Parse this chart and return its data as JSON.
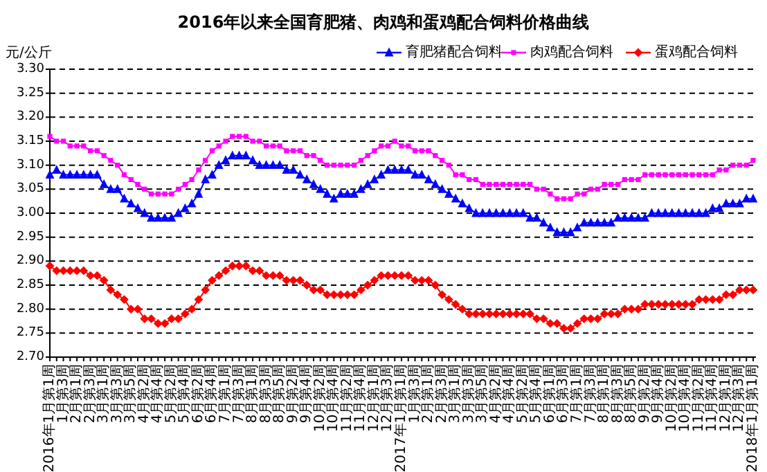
{
  "chart_data": {
    "type": "line",
    "title": "2016年以来全国育肥猪、肉鸡和蛋鸡配合饲料价格曲线",
    "ylabel": "元/公斤",
    "categories": [
      "2016年1月第1周",
      null,
      "1月第3周",
      null,
      "2月第1周",
      null,
      "2月第3周",
      null,
      "3月第1周",
      null,
      "3月第3周",
      null,
      "3月第5周",
      null,
      "4月第2周",
      null,
      "4月第4周",
      null,
      "5月第2周",
      null,
      "5月第4周",
      null,
      "6月第2周",
      null,
      "6月第4周",
      null,
      "7月第1周",
      null,
      "7月第3周",
      null,
      "8月第1周",
      null,
      "8月第3周",
      null,
      "8月第5周",
      null,
      "9月第2周",
      null,
      "9月第4周",
      null,
      "10月第2周",
      null,
      "10月第4周",
      null,
      "11月第2周",
      null,
      "11月第4周",
      null,
      "12月第1周",
      null,
      "12月第3周",
      null,
      "2017年1月第1周",
      null,
      "1月第3周",
      null,
      "2月第1周",
      null,
      "2月第3周",
      null,
      "3月第1周",
      null,
      "3月第3周",
      null,
      "3月第5周",
      null,
      "4月第2周",
      null,
      "4月第4周",
      null,
      "5月第2周",
      null,
      "5月第4周",
      null,
      "6月第1周",
      null,
      "6月第3周",
      null,
      "7月第1周",
      null,
      "7月第3周",
      null,
      "8月第1周",
      null,
      "8月第3周",
      null,
      "8月第5周",
      null,
      "9月第2周",
      null,
      "9月第4周",
      null,
      "10月第2周",
      null,
      "10月第4周",
      null,
      "11月第2周",
      null,
      "11月第4周",
      null,
      "12月第1周",
      null,
      "12月第3周",
      null,
      "2018年1月第1周"
    ],
    "series": [
      {
        "name": "育肥猪配合饲料",
        "color": "#0000ff",
        "marker": "triangle",
        "values": [
          3.08,
          3.09,
          3.08,
          3.08,
          3.08,
          3.08,
          3.08,
          3.08,
          3.06,
          3.05,
          3.05,
          3.03,
          3.02,
          3.01,
          3.0,
          2.99,
          2.99,
          2.99,
          2.99,
          3.0,
          3.01,
          3.02,
          3.04,
          3.07,
          3.08,
          3.1,
          3.11,
          3.12,
          3.12,
          3.12,
          3.11,
          3.1,
          3.1,
          3.1,
          3.1,
          3.09,
          3.09,
          3.08,
          3.07,
          3.06,
          3.05,
          3.04,
          3.03,
          3.04,
          3.04,
          3.04,
          3.05,
          3.06,
          3.07,
          3.08,
          3.09,
          3.09,
          3.09,
          3.09,
          3.08,
          3.08,
          3.07,
          3.06,
          3.05,
          3.04,
          3.03,
          3.02,
          3.01,
          3.0,
          3.0,
          3.0,
          3.0,
          3.0,
          3.0,
          3.0,
          3.0,
          2.99,
          2.99,
          2.98,
          2.97,
          2.96,
          2.96,
          2.96,
          2.97,
          2.98,
          2.98,
          2.98,
          2.98,
          2.98,
          2.99,
          2.99,
          2.99,
          2.99,
          2.99,
          3.0,
          3.0,
          3.0,
          3.0,
          3.0,
          3.0,
          3.0,
          3.0,
          3.0,
          3.01,
          3.01,
          3.02,
          3.02,
          3.02,
          3.03,
          3.03
        ]
      },
      {
        "name": "肉鸡配合饲料",
        "color": "#ff00ff",
        "marker": "square",
        "values": [
          3.16,
          3.15,
          3.15,
          3.14,
          3.14,
          3.14,
          3.13,
          3.13,
          3.12,
          3.11,
          3.1,
          3.08,
          3.07,
          3.06,
          3.05,
          3.04,
          3.04,
          3.04,
          3.04,
          3.05,
          3.06,
          3.07,
          3.09,
          3.11,
          3.13,
          3.14,
          3.15,
          3.16,
          3.16,
          3.16,
          3.15,
          3.15,
          3.14,
          3.14,
          3.14,
          3.13,
          3.13,
          3.13,
          3.12,
          3.12,
          3.11,
          3.1,
          3.1,
          3.1,
          3.1,
          3.1,
          3.11,
          3.12,
          3.13,
          3.14,
          3.14,
          3.15,
          3.14,
          3.14,
          3.13,
          3.13,
          3.13,
          3.12,
          3.11,
          3.1,
          3.08,
          3.08,
          3.07,
          3.07,
          3.06,
          3.06,
          3.06,
          3.06,
          3.06,
          3.06,
          3.06,
          3.06,
          3.05,
          3.05,
          3.04,
          3.03,
          3.03,
          3.03,
          3.04,
          3.04,
          3.05,
          3.05,
          3.06,
          3.06,
          3.06,
          3.07,
          3.07,
          3.07,
          3.08,
          3.08,
          3.08,
          3.08,
          3.08,
          3.08,
          3.08,
          3.08,
          3.08,
          3.08,
          3.08,
          3.09,
          3.09,
          3.1,
          3.1,
          3.1,
          3.11
        ]
      },
      {
        "name": "蛋鸡配合饲料",
        "color": "#ff0000",
        "marker": "diamond",
        "values": [
          2.89,
          2.88,
          2.88,
          2.88,
          2.88,
          2.88,
          2.87,
          2.87,
          2.86,
          2.84,
          2.83,
          2.82,
          2.8,
          2.8,
          2.78,
          2.78,
          2.77,
          2.77,
          2.78,
          2.78,
          2.79,
          2.8,
          2.82,
          2.84,
          2.86,
          2.87,
          2.88,
          2.89,
          2.89,
          2.89,
          2.88,
          2.88,
          2.87,
          2.87,
          2.87,
          2.86,
          2.86,
          2.86,
          2.85,
          2.84,
          2.84,
          2.83,
          2.83,
          2.83,
          2.83,
          2.83,
          2.84,
          2.85,
          2.86,
          2.87,
          2.87,
          2.87,
          2.87,
          2.87,
          2.86,
          2.86,
          2.86,
          2.85,
          2.83,
          2.82,
          2.81,
          2.8,
          2.79,
          2.79,
          2.79,
          2.79,
          2.79,
          2.79,
          2.79,
          2.79,
          2.79,
          2.79,
          2.78,
          2.78,
          2.77,
          2.77,
          2.76,
          2.76,
          2.77,
          2.78,
          2.78,
          2.78,
          2.79,
          2.79,
          2.79,
          2.8,
          2.8,
          2.8,
          2.81,
          2.81,
          2.81,
          2.81,
          2.81,
          2.81,
          2.81,
          2.81,
          2.82,
          2.82,
          2.82,
          2.82,
          2.83,
          2.83,
          2.84,
          2.84,
          2.84
        ]
      }
    ],
    "ylim": [
      2.7,
      3.3
    ],
    "yticks": [
      {
        "value": 2.7,
        "label": "2.70"
      },
      {
        "value": 2.75,
        "label": "2.75"
      },
      {
        "value": 2.8,
        "label": "2.80"
      },
      {
        "value": 2.85,
        "label": "2.85"
      },
      {
        "value": 2.9,
        "label": "2.90"
      },
      {
        "value": 2.95,
        "label": "2.95"
      },
      {
        "value": 3.0,
        "label": "3.00"
      },
      {
        "value": 3.05,
        "label": "3.05"
      },
      {
        "value": 3.1,
        "label": "3.10"
      },
      {
        "value": 3.15,
        "label": "3.15"
      },
      {
        "value": 3.2,
        "label": "3.20"
      },
      {
        "value": 3.25,
        "label": "3.25"
      },
      {
        "value": 3.3,
        "label": "3.30"
      }
    ],
    "grid": "y",
    "legend": "top right",
    "line_style": "solid"
  }
}
